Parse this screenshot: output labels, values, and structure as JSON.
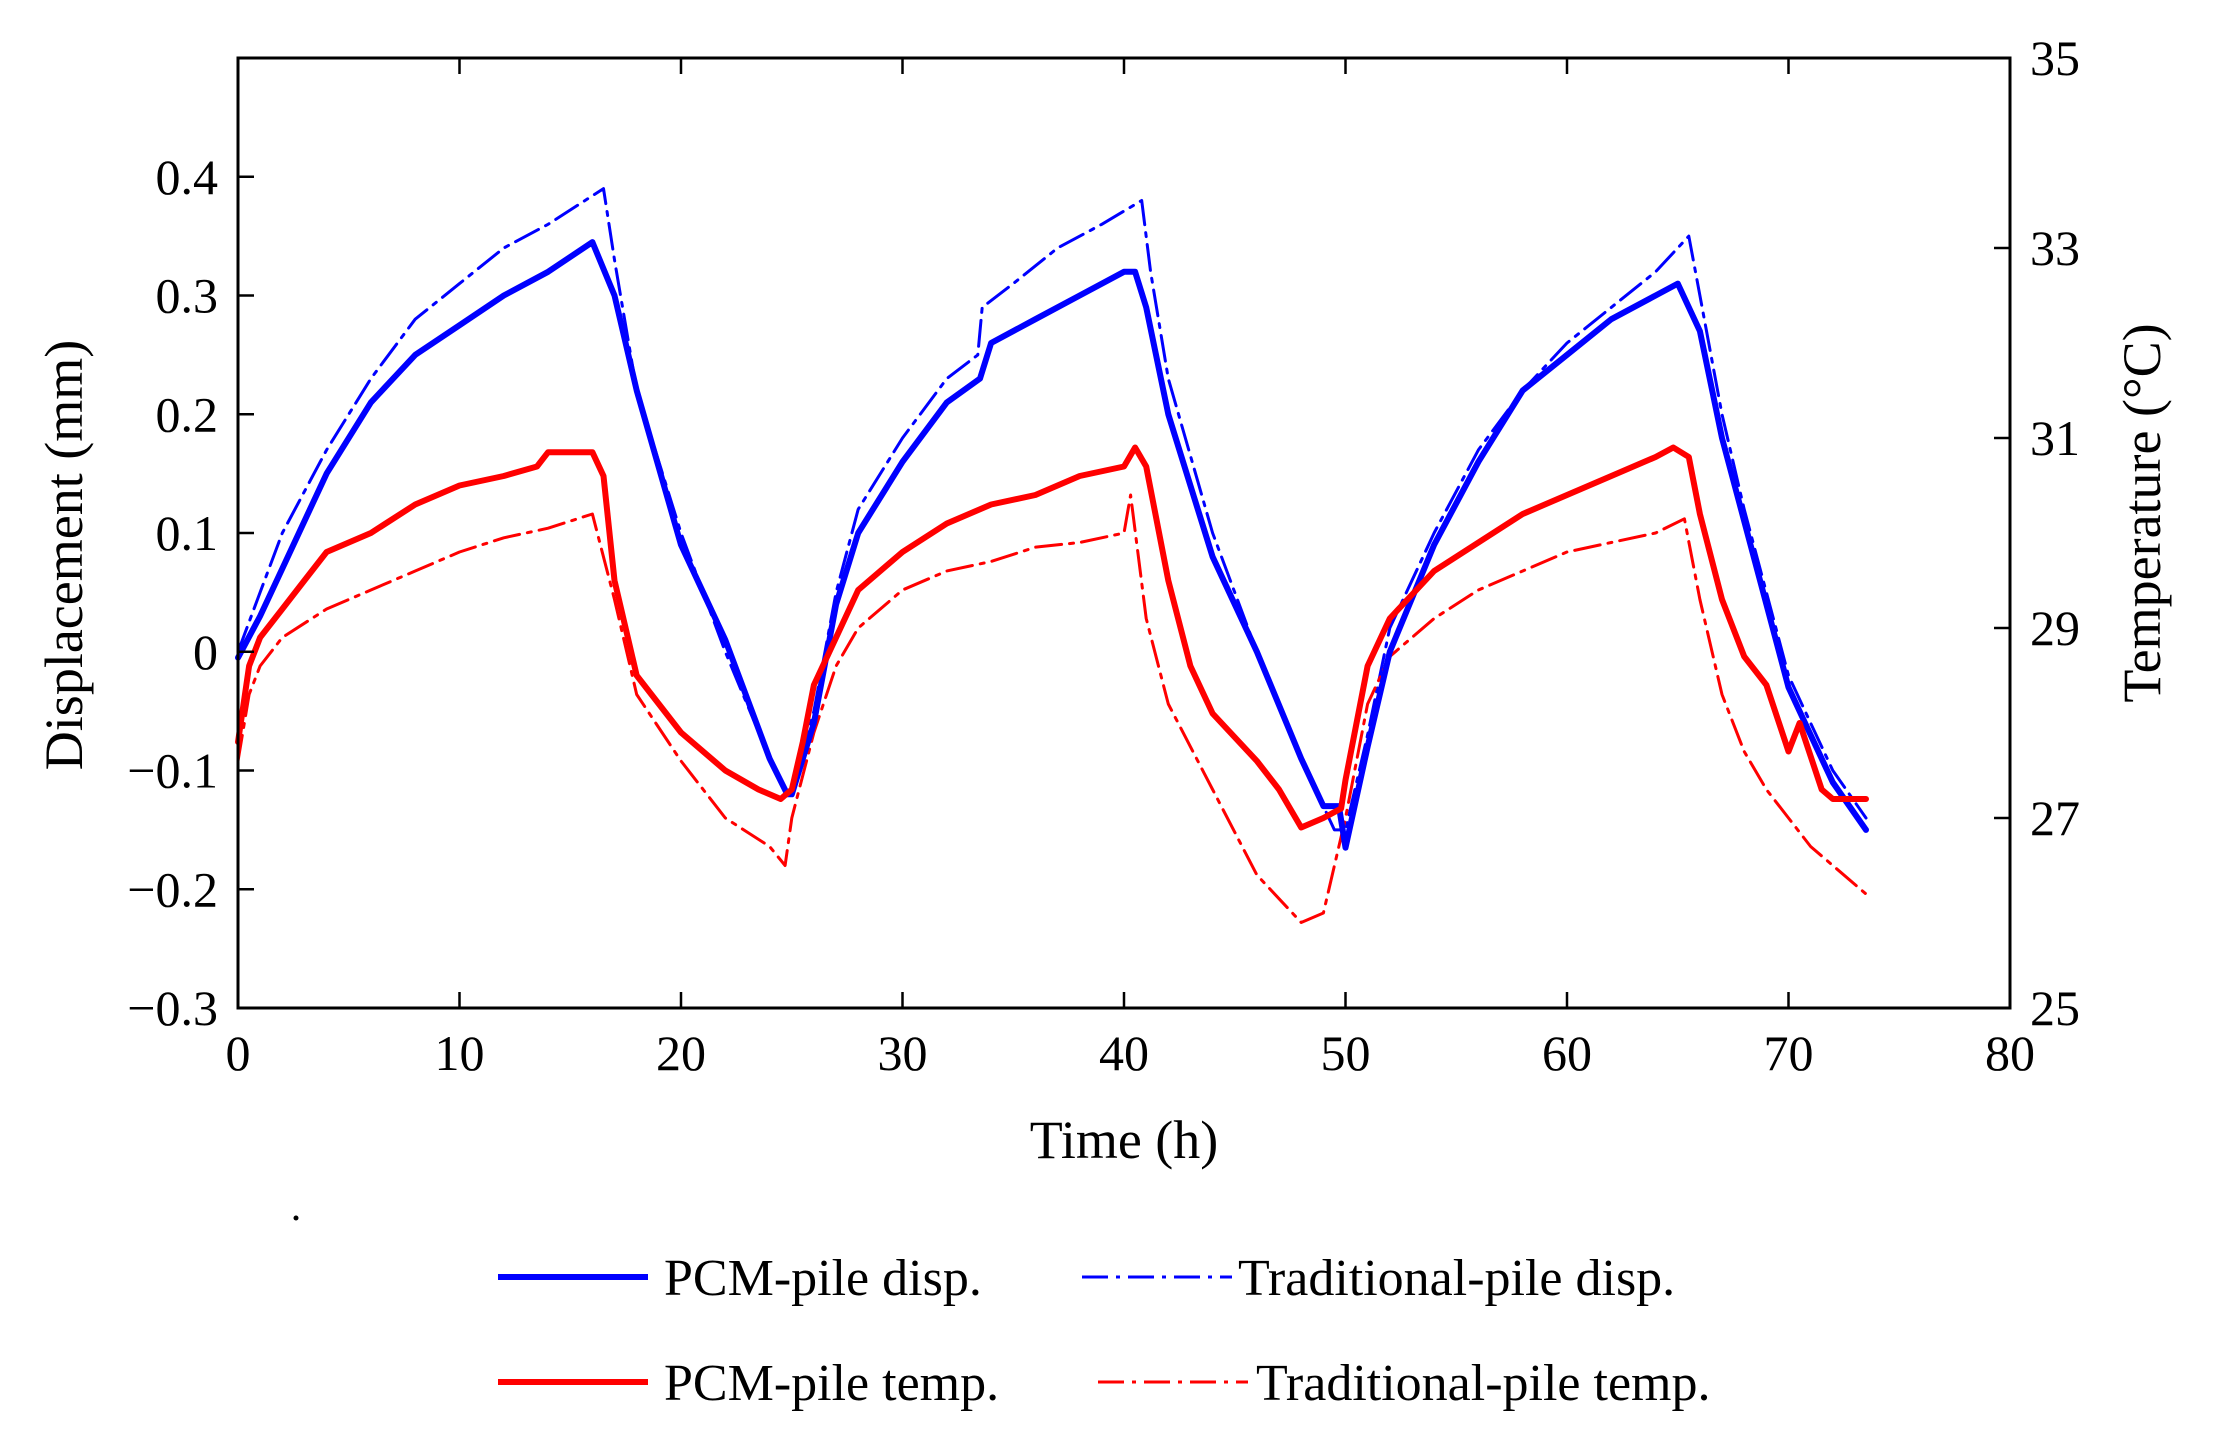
{
  "chart_data": {
    "type": "line",
    "title": "",
    "xlabel": "Time (h)",
    "ylabel_left": "Displacement (mm)",
    "ylabel_right": "Temperature (°C)",
    "xlim": [
      0,
      80
    ],
    "ylim_left": [
      -0.3,
      0.5
    ],
    "ylim_right": [
      25,
      35
    ],
    "grid": false,
    "legend_position": "bottom",
    "x_ticks": [
      {
        "value": 0,
        "label": "0"
      },
      {
        "value": 10,
        "label": "10"
      },
      {
        "value": 20,
        "label": "20"
      },
      {
        "value": 30,
        "label": "30"
      },
      {
        "value": 40,
        "label": "40"
      },
      {
        "value": 50,
        "label": "50"
      },
      {
        "value": 60,
        "label": "60"
      },
      {
        "value": 70,
        "label": "70"
      },
      {
        "value": 80,
        "label": "80"
      }
    ],
    "left_ticks": [
      {
        "value": 0.4,
        "label": "0.4"
      },
      {
        "value": 0.3,
        "label": "0.3"
      },
      {
        "value": 0.2,
        "label": "0.2"
      },
      {
        "value": 0.1,
        "label": "0.1"
      },
      {
        "value": 0,
        "label": "0"
      },
      {
        "value": -0.1,
        "label": "−0.1"
      },
      {
        "value": -0.2,
        "label": "−0.2"
      },
      {
        "value": -0.3,
        "label": "−0.3"
      }
    ],
    "right_ticks": [
      {
        "value": 35,
        "label": "35"
      },
      {
        "value": 33,
        "label": "33"
      },
      {
        "value": 31,
        "label": "31"
      },
      {
        "value": 29,
        "label": "29"
      },
      {
        "value": 27,
        "label": "27"
      },
      {
        "value": 25,
        "label": "25"
      }
    ],
    "series": [
      {
        "name": "PCM-pile disp.",
        "axis": "left",
        "color": "#0000ff",
        "style": "solid",
        "x": [
          0,
          1,
          2,
          4,
          6,
          8,
          10,
          12,
          14,
          16,
          17,
          18,
          20,
          22,
          23,
          24,
          24.8,
          25,
          26,
          27,
          28,
          30,
          32,
          33.5,
          34,
          36,
          38,
          40,
          40.5,
          41,
          42,
          43,
          44,
          46,
          48,
          49,
          49.7,
          50,
          51,
          52,
          54,
          56,
          58,
          60,
          62,
          64,
          65,
          66,
          67,
          68,
          69,
          70,
          71,
          72,
          73.5
        ],
        "y": [
          -0.005,
          0.03,
          0.07,
          0.15,
          0.21,
          0.25,
          0.275,
          0.3,
          0.32,
          0.345,
          0.3,
          0.22,
          0.09,
          0.01,
          -0.04,
          -0.09,
          -0.12,
          -0.12,
          -0.06,
          0.04,
          0.1,
          0.16,
          0.21,
          0.23,
          0.26,
          0.28,
          0.3,
          0.32,
          0.32,
          0.29,
          0.2,
          0.14,
          0.08,
          0.0,
          -0.09,
          -0.13,
          -0.13,
          -0.165,
          -0.08,
          0.0,
          0.09,
          0.16,
          0.22,
          0.25,
          0.28,
          0.3,
          0.31,
          0.27,
          0.18,
          0.11,
          0.04,
          -0.03,
          -0.07,
          -0.11,
          -0.15
        ]
      },
      {
        "name": "Traditional-pile disp.",
        "axis": "left",
        "color": "#0000ff",
        "style": "dashdot",
        "x": [
          0,
          1,
          2,
          4,
          6,
          8,
          10,
          12,
          14,
          16.5,
          17,
          18,
          20,
          22,
          24,
          24.8,
          25,
          26,
          27,
          28,
          30,
          32,
          33.4,
          33.6,
          35,
          37,
          39,
          40.8,
          41.2,
          42,
          44,
          46,
          48,
          49.5,
          50,
          51,
          52,
          54,
          56,
          58,
          60,
          62,
          64,
          65.5,
          66,
          67,
          68,
          69,
          70,
          71,
          72,
          73.5
        ],
        "y": [
          0.0,
          0.05,
          0.1,
          0.17,
          0.23,
          0.28,
          0.31,
          0.34,
          0.36,
          0.39,
          0.33,
          0.22,
          0.1,
          0.0,
          -0.09,
          -0.12,
          -0.12,
          -0.05,
          0.05,
          0.12,
          0.18,
          0.23,
          0.25,
          0.29,
          0.31,
          0.34,
          0.36,
          0.38,
          0.32,
          0.23,
          0.1,
          0.0,
          -0.09,
          -0.15,
          -0.15,
          -0.07,
          0.02,
          0.1,
          0.17,
          0.22,
          0.26,
          0.29,
          0.32,
          0.35,
          0.3,
          0.2,
          0.12,
          0.05,
          -0.02,
          -0.06,
          -0.1,
          -0.14
        ]
      },
      {
        "name": "PCM-pile temp.",
        "axis": "right",
        "color": "#ff0000",
        "style": "solid",
        "x": [
          0,
          0.5,
          1,
          2,
          3,
          4,
          6,
          8,
          10,
          12,
          13.5,
          14,
          15,
          15.5,
          16,
          16.5,
          17,
          18,
          20,
          22,
          23.5,
          24.5,
          25,
          25.5,
          26,
          27,
          28,
          30,
          32,
          34,
          36,
          38,
          40,
          40.5,
          41,
          42,
          43,
          44,
          46,
          47,
          48,
          49,
          49.8,
          50,
          51,
          52,
          54,
          56,
          58,
          60,
          62,
          64,
          64.8,
          65.5,
          66,
          67,
          68,
          69,
          70,
          70.5,
          71.5,
          72,
          73.5
        ],
        "y": [
          27.8,
          28.6,
          28.9,
          29.2,
          29.5,
          29.8,
          30.0,
          30.3,
          30.5,
          30.6,
          30.7,
          30.85,
          30.85,
          30.85,
          30.85,
          30.6,
          29.5,
          28.5,
          27.9,
          27.5,
          27.3,
          27.2,
          27.3,
          27.8,
          28.4,
          28.9,
          29.4,
          29.8,
          30.1,
          30.3,
          30.4,
          30.6,
          30.7,
          30.9,
          30.7,
          29.5,
          28.6,
          28.1,
          27.6,
          27.3,
          26.9,
          27.0,
          27.1,
          27.4,
          28.6,
          29.1,
          29.6,
          29.9,
          30.2,
          30.4,
          30.6,
          30.8,
          30.9,
          30.8,
          30.2,
          29.3,
          28.7,
          28.4,
          27.7,
          28.0,
          27.3,
          27.2,
          27.2
        ]
      },
      {
        "name": "Traditional-pile temp.",
        "axis": "right",
        "color": "#ff0000",
        "style": "dashdot",
        "x": [
          0,
          0.5,
          1,
          2,
          4,
          6,
          8,
          10,
          12,
          14,
          16,
          17,
          18,
          20,
          22,
          24,
          24.7,
          25,
          26,
          27,
          28,
          30,
          32,
          34,
          36,
          38,
          40,
          40.3,
          41,
          42,
          44,
          46,
          48,
          49,
          50,
          51,
          52,
          54,
          56,
          58,
          60,
          62,
          64,
          65.3,
          66,
          67,
          68,
          69,
          70,
          71,
          72,
          73.5
        ],
        "y": [
          27.6,
          28.3,
          28.6,
          28.9,
          29.2,
          29.4,
          29.6,
          29.8,
          29.95,
          30.05,
          30.2,
          29.3,
          28.3,
          27.6,
          27.0,
          26.7,
          26.5,
          27.0,
          27.9,
          28.6,
          29.0,
          29.4,
          29.6,
          29.7,
          29.85,
          29.9,
          30.0,
          30.4,
          29.1,
          28.2,
          27.3,
          26.4,
          25.9,
          26.0,
          27.0,
          28.2,
          28.7,
          29.1,
          29.4,
          29.6,
          29.8,
          29.9,
          30.0,
          30.15,
          29.3,
          28.3,
          27.7,
          27.3,
          27.0,
          26.7,
          26.5,
          26.2
        ]
      }
    ]
  }
}
